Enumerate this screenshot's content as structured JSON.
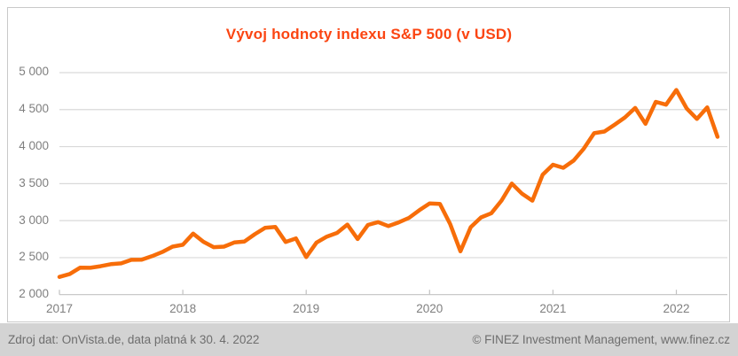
{
  "title": "Vývoj hodnoty indexu S&P 500 (v USD)",
  "colors": {
    "title": "#fb4512",
    "line": "#f76d09",
    "grid": "#d9d9d9",
    "axis": "#c2c2c2",
    "tick_label": "#7f7f7f",
    "footer_bg": "#d3d3d3",
    "footer_text": "#6e6e6e"
  },
  "footer": {
    "left": "Zdroj dat: OnVista.de, data platná k 30. 4. 2022",
    "right": "© FINEZ Investment Management, www.finez.cz"
  },
  "chart_data": {
    "type": "line",
    "title": "Vývoj hodnoty indexu S&P 500 (v USD)",
    "series_name": "S&P 500 index value (USD)",
    "x_unit": "month",
    "x_start": "2016-12",
    "x_end": "2022-04",
    "x_tick_labels": [
      "2017",
      "2018",
      "2019",
      "2020",
      "2021",
      "2022"
    ],
    "y_tick_labels": [
      "2 000",
      "2 500",
      "3 000",
      "3 500",
      "4 000",
      "4 500",
      "5 000"
    ],
    "ylim": [
      2000,
      5000
    ],
    "y_step": 500,
    "grid": true,
    "legend": "none",
    "dates": [
      "2016-12",
      "2017-01",
      "2017-02",
      "2017-03",
      "2017-04",
      "2017-05",
      "2017-06",
      "2017-07",
      "2017-08",
      "2017-09",
      "2017-10",
      "2017-11",
      "2017-12",
      "2018-01",
      "2018-02",
      "2018-03",
      "2018-04",
      "2018-05",
      "2018-06",
      "2018-07",
      "2018-08",
      "2018-09",
      "2018-10",
      "2018-11",
      "2018-12",
      "2019-01",
      "2019-02",
      "2019-03",
      "2019-04",
      "2019-05",
      "2019-06",
      "2019-07",
      "2019-08",
      "2019-09",
      "2019-10",
      "2019-11",
      "2019-12",
      "2020-01",
      "2020-02",
      "2020-03",
      "2020-04",
      "2020-05",
      "2020-06",
      "2020-07",
      "2020-08",
      "2020-09",
      "2020-10",
      "2020-11",
      "2020-12",
      "2021-01",
      "2021-02",
      "2021-03",
      "2021-04",
      "2021-05",
      "2021-06",
      "2021-07",
      "2021-08",
      "2021-09",
      "2021-10",
      "2021-11",
      "2021-12",
      "2022-01",
      "2022-02",
      "2022-03",
      "2022-04"
    ],
    "values": [
      2239,
      2279,
      2364,
      2363,
      2384,
      2412,
      2423,
      2470,
      2472,
      2519,
      2575,
      2648,
      2674,
      2824,
      2714,
      2641,
      2648,
      2705,
      2718,
      2816,
      2902,
      2914,
      2712,
      2760,
      2507,
      2704,
      2784,
      2834,
      2946,
      2752,
      2942,
      2980,
      2926,
      2977,
      3038,
      3141,
      3231,
      3226,
      2954,
      2585,
      2912,
      3044,
      3100,
      3271,
      3500,
      3363,
      3270,
      3622,
      3756,
      3714,
      3811,
      3973,
      4181,
      4204,
      4298,
      4395,
      4523,
      4308,
      4605,
      4567,
      4766,
      4516,
      4374,
      4530,
      4132
    ]
  }
}
